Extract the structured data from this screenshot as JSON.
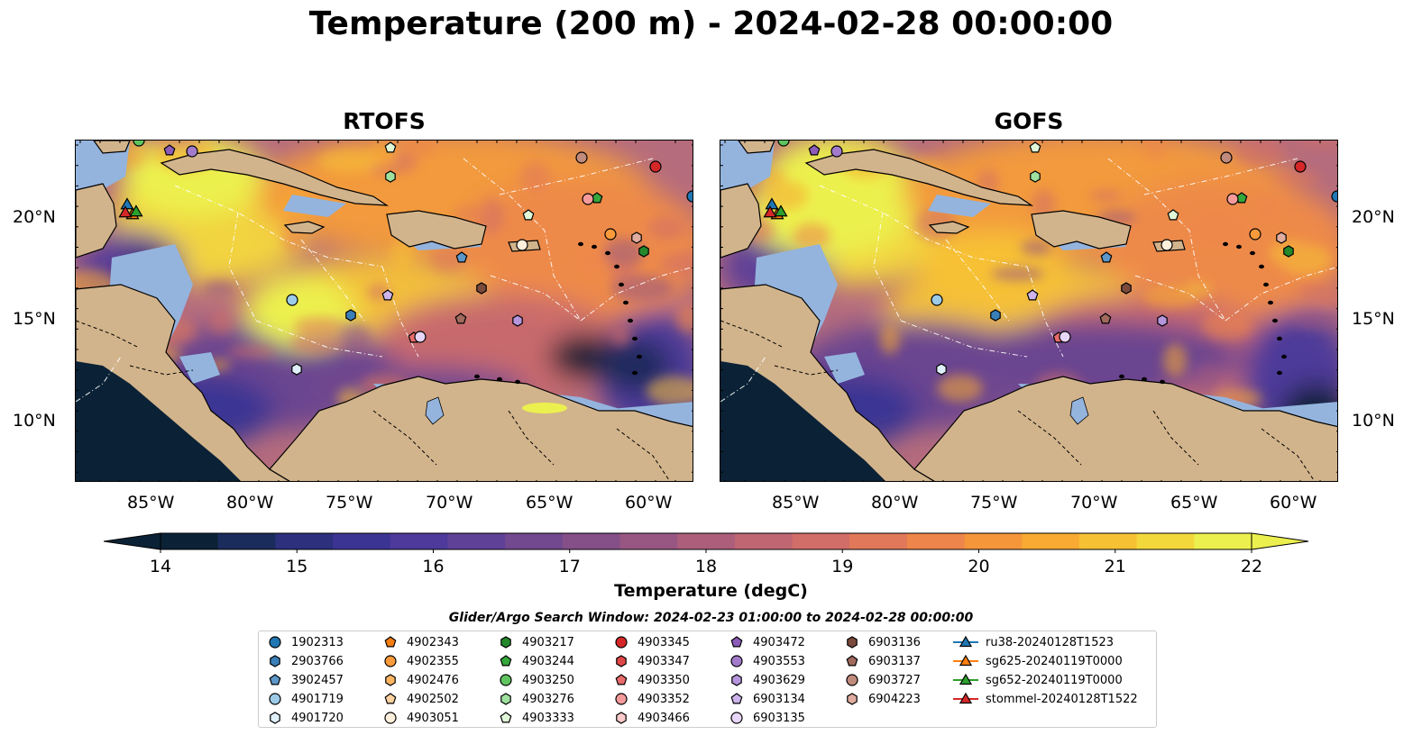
{
  "title": "Temperature (200 m) - 2024-02-28 00:00:00",
  "maps": [
    {
      "id": "rtofs",
      "title": "RTOFS"
    },
    {
      "id": "gofs",
      "title": "GOFS"
    }
  ],
  "axes": {
    "lon_labels": [
      "85°W",
      "80°W",
      "75°W",
      "70°W",
      "65°W",
      "60°W"
    ],
    "lat_labels": [
      "20°N",
      "15°N",
      "10°N"
    ]
  },
  "colorbar": {
    "label": "Temperature (degC)",
    "min": 14,
    "max": 22,
    "ticks": [
      "14",
      "15",
      "16",
      "17",
      "18",
      "19",
      "20",
      "21",
      "22"
    ],
    "colors": [
      "#0b2236",
      "#1a2c5c",
      "#2c307d",
      "#3b3493",
      "#4d3a9a",
      "#5f4197",
      "#72488f",
      "#854f88",
      "#985783",
      "#ac5e7b",
      "#c06672",
      "#d16e67",
      "#e1785a",
      "#ee854b",
      "#f5963b",
      "#f8aa33",
      "#f7c134",
      "#f3d83c",
      "#ecf04e"
    ]
  },
  "search_window": "Glider/Argo Search Window: 2024-02-23 01:00:00 to 2024-02-28 00:00:00",
  "legend": {
    "columns": [
      [
        {
          "label": "1902313",
          "marker": "circle",
          "color": "#1f77b4"
        },
        {
          "label": "2903766",
          "marker": "hexagon",
          "color": "#3a7fb8"
        },
        {
          "label": "3902457",
          "marker": "pentagon",
          "color": "#5c97c9"
        },
        {
          "label": "4901719",
          "marker": "circle",
          "color": "#9ccbe8"
        },
        {
          "label": "4901720",
          "marker": "hexagon",
          "color": "#dff0fb"
        }
      ],
      [
        {
          "label": "4902343",
          "marker": "pentagon",
          "color": "#f57e12"
        },
        {
          "label": "4902355",
          "marker": "circle",
          "color": "#fb9a3a"
        },
        {
          "label": "4902476",
          "marker": "hexagon",
          "color": "#fdb562"
        },
        {
          "label": "4902502",
          "marker": "pentagon",
          "color": "#fed2a0"
        },
        {
          "label": "4903051",
          "marker": "circle",
          "color": "#fff0dd"
        }
      ],
      [
        {
          "label": "4903217",
          "marker": "hexagon",
          "color": "#25882b"
        },
        {
          "label": "4903244",
          "marker": "pentagon",
          "color": "#35a83c"
        },
        {
          "label": "4903250",
          "marker": "circle",
          "color": "#5fc45f"
        },
        {
          "label": "4903276",
          "marker": "hexagon",
          "color": "#9fe09f"
        },
        {
          "label": "4903333",
          "marker": "pentagon",
          "color": "#e0f8d8"
        }
      ],
      [
        {
          "label": "4903345",
          "marker": "circle",
          "color": "#d62728"
        },
        {
          "label": "4903347",
          "marker": "hexagon",
          "color": "#e04848"
        },
        {
          "label": "4903350",
          "marker": "pentagon",
          "color": "#ea6b6b"
        },
        {
          "label": "4903352",
          "marker": "circle",
          "color": "#f59a9a"
        },
        {
          "label": "4903466",
          "marker": "hexagon",
          "color": "#fccaca"
        }
      ],
      [
        {
          "label": "4903472",
          "marker": "pentagon",
          "color": "#8c5cb8"
        },
        {
          "label": "4903553",
          "marker": "circle",
          "color": "#a27bcc"
        },
        {
          "label": "4903629",
          "marker": "hexagon",
          "color": "#b596dc"
        },
        {
          "label": "6903134",
          "marker": "pentagon",
          "color": "#cdb4ec"
        },
        {
          "label": "6903135",
          "marker": "circle",
          "color": "#e8d6f8"
        }
      ],
      [
        {
          "label": "6903136",
          "marker": "hexagon",
          "color": "#7a4a3c"
        },
        {
          "label": "6903137",
          "marker": "pentagon",
          "color": "#a06a5c"
        },
        {
          "label": "6903727",
          "marker": "circle",
          "color": "#c08a7c"
        },
        {
          "label": "6904223",
          "marker": "hexagon",
          "color": "#e0aca0"
        }
      ],
      [
        {
          "label": "ru38-20240128T1523",
          "marker": "triangle-line",
          "color": "#1f77b4"
        },
        {
          "label": "sg625-20240119T0000",
          "marker": "triangle-line",
          "color": "#ff7f0e"
        },
        {
          "label": "sg652-20240119T0000",
          "marker": "triangle-line",
          "color": "#2ca02c"
        },
        {
          "label": "stommel-20240128T1522",
          "marker": "triangle-line",
          "color": "#d62728"
        }
      ]
    ]
  }
}
